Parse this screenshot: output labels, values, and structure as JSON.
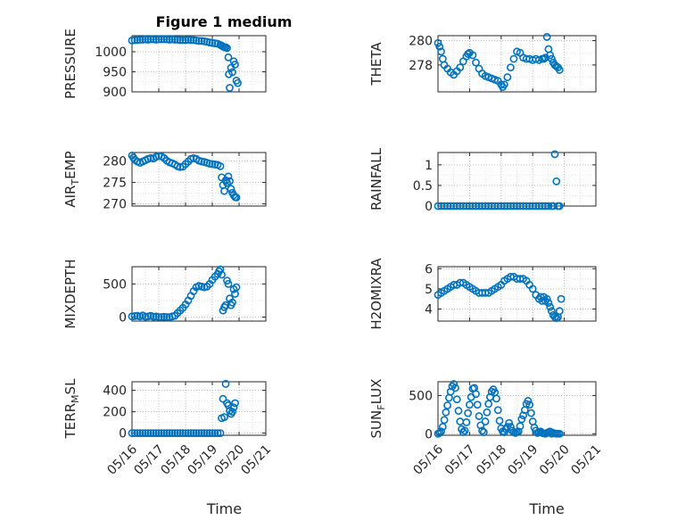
{
  "window": {
    "title": "Figure 1 medium"
  },
  "colors": {
    "marker": "#0072BD",
    "axis": "#262626",
    "grid": "#b0b0b0"
  },
  "chart_data": [
    {
      "type": "scatter",
      "id": "pressure",
      "ylabel": "PRESSURE",
      "xlim": [
        0,
        5
      ],
      "ylim": [
        900,
        1040
      ],
      "yticks": [
        900,
        950,
        1000
      ],
      "yticklabels": [
        "900",
        "950",
        "1000"
      ],
      "grid": true,
      "xticklabels_shown": false,
      "x": [
        0,
        0.1,
        0.2,
        0.3,
        0.4,
        0.5,
        0.6,
        0.7,
        0.8,
        0.9,
        1.0,
        1.1,
        1.2,
        1.3,
        1.4,
        1.5,
        1.6,
        1.7,
        1.8,
        1.9,
        2.0,
        2.1,
        2.2,
        2.3,
        2.4,
        2.5,
        2.6,
        2.7,
        2.8,
        2.9,
        3.0,
        3.1,
        3.2,
        3.3,
        3.35,
        3.4,
        3.45,
        3.5,
        3.55,
        3.6,
        3.62,
        3.65,
        3.7,
        3.75,
        3.8,
        3.85,
        3.9,
        3.95
      ],
      "y": [
        1028,
        1029,
        1029,
        1030,
        1030,
        1031,
        1030,
        1031,
        1031,
        1030,
        1031,
        1031,
        1031,
        1031,
        1030,
        1031,
        1030,
        1030,
        1029,
        1029,
        1029,
        1030,
        1029,
        1029,
        1028,
        1027,
        1027,
        1026,
        1025,
        1023,
        1022,
        1021,
        1020,
        1017,
        1015,
        1013,
        1011,
        1011,
        1009,
        986,
        944,
        910,
        960,
        949,
        976,
        968,
        928,
        922
      ]
    },
    {
      "type": "scatter",
      "id": "theta",
      "ylabel": "THETA",
      "xlim": [
        0,
        5
      ],
      "ylim": [
        275.8,
        280.4
      ],
      "yticks": [
        278,
        280
      ],
      "yticklabels": [
        "278",
        "280"
      ],
      "grid": true,
      "xticklabels_shown": false,
      "x": [
        0,
        0.05,
        0.1,
        0.15,
        0.2,
        0.3,
        0.4,
        0.5,
        0.6,
        0.7,
        0.8,
        0.9,
        0.95,
        1.0,
        1.1,
        1.2,
        1.3,
        1.4,
        1.5,
        1.6,
        1.7,
        1.8,
        1.9,
        2.0,
        2.05,
        2.1,
        2.2,
        2.3,
        2.4,
        2.5,
        2.6,
        2.7,
        2.8,
        2.9,
        3.0,
        3.1,
        3.2,
        3.3,
        3.35,
        3.4,
        3.45,
        3.5,
        3.55,
        3.6,
        3.65,
        3.7,
        3.75,
        3.8,
        3.85
      ],
      "y": [
        279.8,
        279.5,
        279.1,
        278.5,
        278.0,
        277.7,
        277.4,
        277.2,
        277.5,
        277.8,
        278.3,
        278.7,
        278.9,
        279.0,
        278.8,
        278.2,
        277.7,
        277.3,
        277.1,
        277.0,
        276.9,
        276.8,
        276.7,
        276.4,
        276.2,
        276.4,
        277.0,
        277.8,
        278.5,
        279.1,
        279.0,
        278.6,
        278.5,
        278.5,
        278.4,
        278.5,
        278.4,
        278.5,
        278.5,
        278.6,
        280.3,
        279.3,
        278.8,
        278.5,
        278.2,
        278.0,
        277.9,
        277.8,
        277.6
      ]
    },
    {
      "type": "scatter",
      "id": "air_temp",
      "ylabel": "AIR_TEMP",
      "xlim": [
        0,
        5
      ],
      "ylim": [
        269.5,
        282
      ],
      "yticks": [
        270,
        275,
        280
      ],
      "yticklabels": [
        "270",
        "275",
        "280"
      ],
      "grid": true,
      "xticklabels_shown": false,
      "x": [
        0,
        0.05,
        0.1,
        0.2,
        0.3,
        0.4,
        0.5,
        0.6,
        0.7,
        0.8,
        0.9,
        1.0,
        1.1,
        1.2,
        1.3,
        1.4,
        1.5,
        1.6,
        1.7,
        1.8,
        1.9,
        2.0,
        2.1,
        2.2,
        2.3,
        2.4,
        2.5,
        2.6,
        2.7,
        2.8,
        2.9,
        3.0,
        3.1,
        3.2,
        3.3,
        3.35,
        3.4,
        3.45,
        3.5,
        3.55,
        3.6,
        3.65,
        3.7,
        3.75,
        3.8,
        3.85,
        3.9
      ],
      "y": [
        281.3,
        280.8,
        280.3,
        279.9,
        279.6,
        279.9,
        280.2,
        280.5,
        280.7,
        280.6,
        281.0,
        281.2,
        281.1,
        280.7,
        280.1,
        279.7,
        279.5,
        279.2,
        278.8,
        278.6,
        278.7,
        279.3,
        279.9,
        280.5,
        280.7,
        280.5,
        280.1,
        279.9,
        279.8,
        279.6,
        279.4,
        279.3,
        279.2,
        279.1,
        278.8,
        276.2,
        274.4,
        273.0,
        275.5,
        274.9,
        276.4,
        275.3,
        273.5,
        272.6,
        272.0,
        271.6,
        271.5
      ]
    },
    {
      "type": "scatter",
      "id": "rainfall",
      "ylabel": "RAINFALL",
      "xlim": [
        0,
        5
      ],
      "ylim": [
        0,
        1.3
      ],
      "yticks": [
        0,
        0.5,
        1
      ],
      "yticklabels": [
        "0",
        "0.5",
        "1"
      ],
      "grid": true,
      "xticklabels_shown": false,
      "x": [
        0,
        0.1,
        0.2,
        0.3,
        0.4,
        0.5,
        0.6,
        0.7,
        0.8,
        0.9,
        1.0,
        1.1,
        1.2,
        1.3,
        1.4,
        1.5,
        1.6,
        1.7,
        1.8,
        1.9,
        2.0,
        2.1,
        2.2,
        2.3,
        2.4,
        2.5,
        2.6,
        2.7,
        2.8,
        2.9,
        3.0,
        3.1,
        3.2,
        3.3,
        3.4,
        3.5,
        3.6,
        3.65,
        3.7,
        3.75,
        3.8,
        3.85
      ],
      "y": [
        0,
        0,
        0,
        0,
        0,
        0,
        0,
        0,
        0,
        0,
        0,
        0,
        0,
        0,
        0,
        0,
        0,
        0,
        0,
        0,
        0,
        0,
        0,
        0,
        0,
        0,
        0,
        0,
        0,
        0,
        0,
        0,
        0,
        0,
        0,
        0,
        0,
        0,
        1.26,
        0.6,
        0,
        0
      ]
    },
    {
      "type": "scatter",
      "id": "mixdepth",
      "ylabel": "MIXDEPTH",
      "xlim": [
        0,
        5
      ],
      "ylim": [
        -60,
        760
      ],
      "yticks": [
        0,
        500
      ],
      "yticklabels": [
        "0",
        "500"
      ],
      "grid": true,
      "xticklabels_shown": false,
      "x": [
        0,
        0.1,
        0.2,
        0.3,
        0.4,
        0.5,
        0.6,
        0.7,
        0.8,
        0.9,
        1.0,
        1.1,
        1.2,
        1.3,
        1.4,
        1.5,
        1.6,
        1.7,
        1.8,
        1.9,
        2.0,
        2.1,
        2.2,
        2.3,
        2.4,
        2.5,
        2.6,
        2.7,
        2.8,
        2.9,
        3.0,
        3.1,
        3.2,
        3.25,
        3.3,
        3.35,
        3.4,
        3.45,
        3.5,
        3.55,
        3.6,
        3.65,
        3.7,
        3.75,
        3.8,
        3.85,
        3.9
      ],
      "y": [
        10,
        15,
        20,
        10,
        25,
        5,
        10,
        20,
        5,
        10,
        0,
        0,
        5,
        0,
        0,
        10,
        20,
        60,
        100,
        140,
        190,
        250,
        320,
        390,
        450,
        470,
        460,
        450,
        460,
        500,
        560,
        610,
        650,
        690,
        720,
        640,
        100,
        150,
        180,
        550,
        500,
        280,
        180,
        220,
        420,
        350,
        450
      ]
    },
    {
      "type": "scatter",
      "id": "h2omixra",
      "ylabel": "H2OMIXRA",
      "xlim": [
        0,
        5
      ],
      "ylim": [
        3.4,
        6.1
      ],
      "yticks": [
        4,
        5,
        6
      ],
      "yticklabels": [
        "4",
        "5",
        "6"
      ],
      "grid": true,
      "xticklabels_shown": false,
      "x": [
        0,
        0.1,
        0.2,
        0.3,
        0.4,
        0.5,
        0.6,
        0.7,
        0.8,
        0.9,
        1.0,
        1.1,
        1.2,
        1.3,
        1.4,
        1.5,
        1.6,
        1.7,
        1.8,
        1.9,
        2.0,
        2.1,
        2.2,
        2.3,
        2.4,
        2.5,
        2.6,
        2.7,
        2.8,
        2.9,
        3.0,
        3.1,
        3.2,
        3.25,
        3.3,
        3.35,
        3.4,
        3.45,
        3.5,
        3.55,
        3.6,
        3.65,
        3.7,
        3.75,
        3.8,
        3.85,
        3.9
      ],
      "y": [
        4.7,
        4.8,
        4.9,
        5.0,
        5.1,
        5.2,
        5.2,
        5.3,
        5.3,
        5.2,
        5.1,
        5.0,
        4.9,
        4.8,
        4.8,
        4.8,
        4.8,
        4.9,
        5.0,
        5.1,
        5.2,
        5.4,
        5.5,
        5.6,
        5.6,
        5.5,
        5.5,
        5.5,
        5.4,
        5.2,
        5.0,
        4.7,
        4.5,
        4.6,
        4.4,
        4.6,
        4.4,
        4.5,
        4.3,
        4.1,
        3.9,
        3.7,
        3.6,
        3.55,
        3.6,
        3.9,
        4.5
      ]
    },
    {
      "type": "scatter",
      "id": "terr_msl",
      "ylabel": "TERR_MSL",
      "xlim": [
        0,
        5
      ],
      "ylim": [
        -20,
        480
      ],
      "yticks": [
        0,
        200,
        400
      ],
      "yticklabels": [
        "0",
        "200",
        "400"
      ],
      "grid": true,
      "xticklabels": [
        "05/16",
        "05/17",
        "05/18",
        "05/19",
        "05/20",
        "05/21"
      ],
      "xlabel": "Time",
      "x": [
        0,
        0.1,
        0.2,
        0.3,
        0.4,
        0.5,
        0.6,
        0.7,
        0.8,
        0.9,
        1.0,
        1.1,
        1.2,
        1.3,
        1.4,
        1.5,
        1.6,
        1.7,
        1.8,
        1.9,
        2.0,
        2.1,
        2.2,
        2.3,
        2.4,
        2.5,
        2.6,
        2.7,
        2.8,
        2.9,
        3.0,
        3.1,
        3.2,
        3.3,
        3.35,
        3.4,
        3.45,
        3.5,
        3.55,
        3.6,
        3.65,
        3.7,
        3.75,
        3.8,
        3.85
      ],
      "y": [
        0,
        0,
        0,
        0,
        0,
        0,
        0,
        0,
        0,
        0,
        0,
        0,
        0,
        0,
        0,
        0,
        0,
        0,
        0,
        0,
        0,
        0,
        0,
        0,
        0,
        0,
        0,
        0,
        0,
        0,
        0,
        0,
        0,
        0,
        140,
        320,
        150,
        460,
        280,
        260,
        210,
        180,
        200,
        240,
        280
      ]
    },
    {
      "type": "scatter",
      "id": "sun_flux",
      "ylabel": "SUN_FLUX",
      "xlim": [
        0,
        5
      ],
      "ylim": [
        -20,
        680
      ],
      "yticks": [
        0,
        500
      ],
      "yticklabels": [
        "0",
        "500"
      ],
      "grid": true,
      "xticklabels": [
        "05/16",
        "05/17",
        "05/18",
        "05/19",
        "05/20",
        "05/21"
      ],
      "xlabel": "Time",
      "x": [
        0,
        0.05,
        0.1,
        0.15,
        0.2,
        0.25,
        0.3,
        0.35,
        0.4,
        0.45,
        0.5,
        0.55,
        0.6,
        0.65,
        0.7,
        0.75,
        0.8,
        0.85,
        0.9,
        0.95,
        1.0,
        1.05,
        1.1,
        1.15,
        1.2,
        1.25,
        1.3,
        1.35,
        1.4,
        1.45,
        1.5,
        1.55,
        1.6,
        1.65,
        1.7,
        1.75,
        1.8,
        1.85,
        1.9,
        1.95,
        2.0,
        2.05,
        2.1,
        2.15,
        2.2,
        2.25,
        2.3,
        2.35,
        2.4,
        2.45,
        2.5,
        2.55,
        2.6,
        2.65,
        2.7,
        2.75,
        2.8,
        2.85,
        2.9,
        2.95,
        3.0,
        3.05,
        3.1,
        3.15,
        3.2,
        3.25,
        3.3,
        3.35,
        3.4,
        3.45,
        3.5,
        3.55,
        3.6,
        3.65,
        3.7,
        3.75,
        3.8,
        3.85
      ],
      "y": [
        0,
        10,
        30,
        90,
        180,
        280,
        370,
        470,
        550,
        620,
        650,
        600,
        450,
        300,
        160,
        60,
        20,
        40,
        150,
        270,
        380,
        480,
        590,
        600,
        520,
        380,
        230,
        110,
        40,
        20,
        160,
        280,
        390,
        480,
        550,
        580,
        540,
        460,
        310,
        170,
        70,
        30,
        20,
        60,
        90,
        140,
        90,
        40,
        20,
        10,
        20,
        30,
        100,
        190,
        240,
        310,
        390,
        430,
        380,
        270,
        160,
        80,
        40,
        10,
        20,
        30,
        10,
        5,
        0,
        10,
        20,
        30,
        0,
        10,
        5,
        0,
        0,
        0
      ]
    }
  ]
}
